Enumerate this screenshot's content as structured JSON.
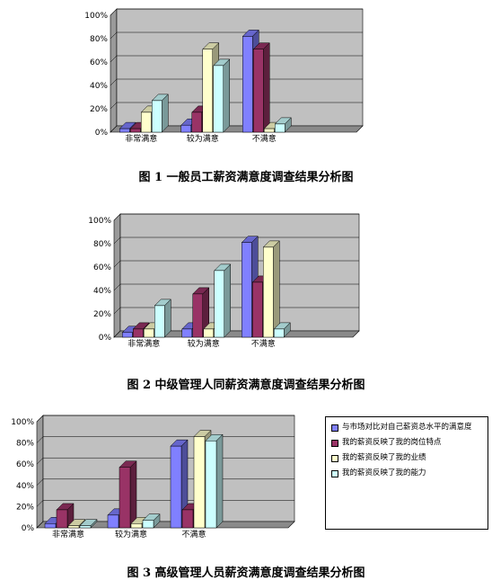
{
  "colors": {
    "plot_bg": "#c0c0c0",
    "wall_side": "#9a9a9a",
    "floor": "#8a8a8a",
    "series": [
      "#8080ff",
      "#993366",
      "#ffffcc",
      "#ccffff"
    ]
  },
  "legend": {
    "items": [
      "与市场对比对自己薪资总水平的满意度",
      "我的薪资反映了我的岗位特点",
      "我的薪资反映了我的业绩",
      "我的薪资反映了我的能力"
    ]
  },
  "captions": [
    "图 1 一般员工薪资满意度调查结果分析图",
    "图 2 中级管理人同薪资满意度调查结果分析图",
    "图 3 高级管理人员薪资满意度调查结果分析图"
  ],
  "chart_data": [
    {
      "type": "bar",
      "categories": [
        "非常满意",
        "较为满意",
        "不满意"
      ],
      "ylim": [
        0,
        100
      ],
      "yticks": [
        "0%",
        "20%",
        "40%",
        "60%",
        "80%",
        "100%"
      ],
      "series": [
        {
          "values": [
            3,
            6,
            82
          ]
        },
        {
          "values": [
            3,
            17,
            71
          ]
        },
        {
          "values": [
            17,
            71,
            3
          ]
        },
        {
          "values": [
            27,
            57,
            7
          ]
        }
      ]
    },
    {
      "type": "bar",
      "categories": [
        "非常满意",
        "较为满意",
        "不满意"
      ],
      "ylim": [
        0,
        100
      ],
      "yticks": [
        "0%",
        "20%",
        "40%",
        "60%",
        "80%",
        "100%"
      ],
      "series": [
        {
          "values": [
            4,
            7,
            81
          ]
        },
        {
          "values": [
            7,
            37,
            47
          ]
        },
        {
          "values": [
            7,
            7,
            77
          ]
        },
        {
          "values": [
            27,
            57,
            7
          ]
        }
      ]
    },
    {
      "type": "bar",
      "categories": [
        "非常满意",
        "较为满意",
        "不满意"
      ],
      "ylim": [
        0,
        100
      ],
      "yticks": [
        "0%",
        "20%",
        "40%",
        "60%",
        "80%",
        "100%"
      ],
      "series": [
        {
          "name": "与市场对比对自己薪资总水平的满意度",
          "values": [
            4,
            12,
            77
          ]
        },
        {
          "name": "我的薪资反映了我的岗位特点",
          "values": [
            17,
            57,
            17
          ]
        },
        {
          "name": "我的薪资反映了我的业绩",
          "values": [
            2,
            4,
            86
          ]
        },
        {
          "name": "我的薪资反映了我的能力",
          "values": [
            2,
            7,
            82
          ]
        }
      ]
    }
  ]
}
